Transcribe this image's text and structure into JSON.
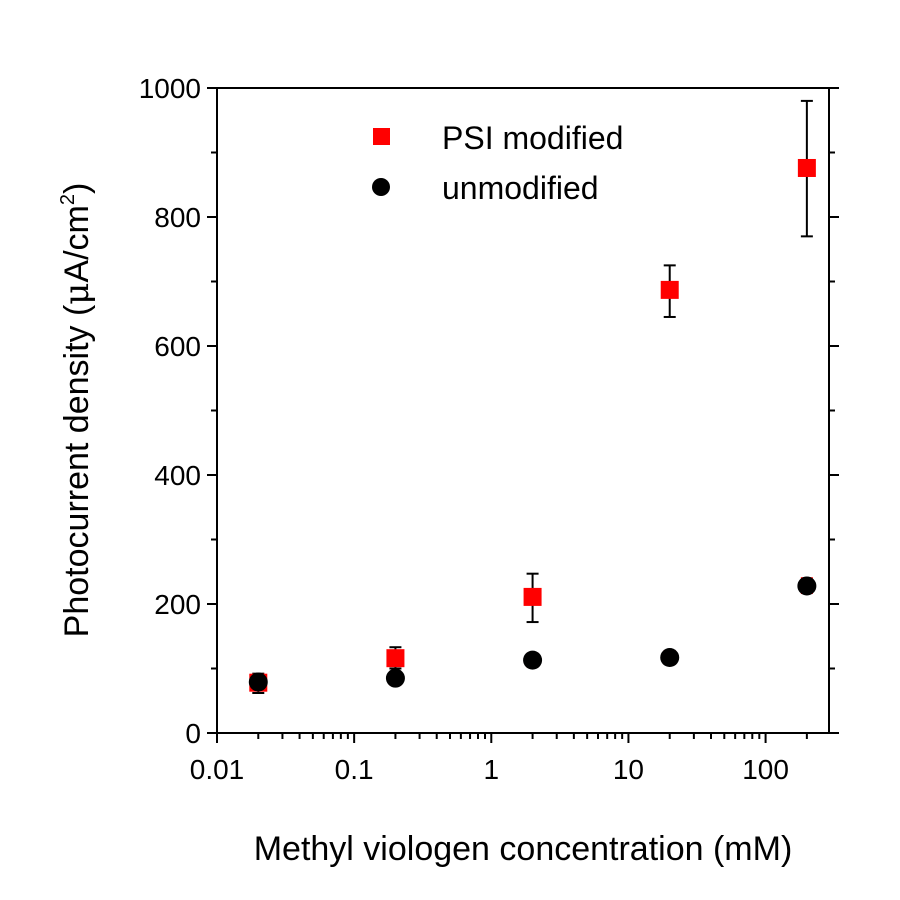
{
  "chart_data": {
    "type": "scatter",
    "title": "",
    "xlabel": "Methyl viologen concentration (mM)",
    "ylabel_main": "Photocurrent density (",
    "ylabel_mu": "μ",
    "ylabel_unit": "A/cm",
    "ylabel_sup": "2",
    "ylabel_close": ")",
    "xscale": "log",
    "xlim": [
      0.01,
      290
    ],
    "ylim": [
      0,
      1000
    ],
    "xticks": [
      0.01,
      0.1,
      1,
      10,
      100
    ],
    "xtick_labels": [
      "0.01",
      "0.1",
      "1",
      "10",
      "100"
    ],
    "yticks": [
      0,
      200,
      400,
      600,
      800,
      1000
    ],
    "ytick_labels": [
      "0",
      "200",
      "400",
      "600",
      "800",
      "1000"
    ],
    "grid": false,
    "legend_position": "top-center",
    "x": [
      0.02,
      0.2,
      2,
      20,
      200
    ],
    "series": [
      {
        "name": "PSI modified",
        "marker": "square",
        "color": "#ff0000",
        "values": [
          78,
          116,
          211,
          687,
          876
        ],
        "err_low": [
          62,
          100,
          172,
          645,
          770
        ],
        "err_high": [
          92,
          133,
          247,
          725,
          980
        ]
      },
      {
        "name": "unmodified",
        "marker": "circle",
        "color": "#000000",
        "errcolor": "#ff0000",
        "values": [
          79,
          85,
          113,
          117,
          228
        ],
        "err_low": [
          68,
          75,
          103,
          107,
          217
        ],
        "err_high": [
          90,
          95,
          123,
          127,
          240
        ]
      }
    ]
  }
}
